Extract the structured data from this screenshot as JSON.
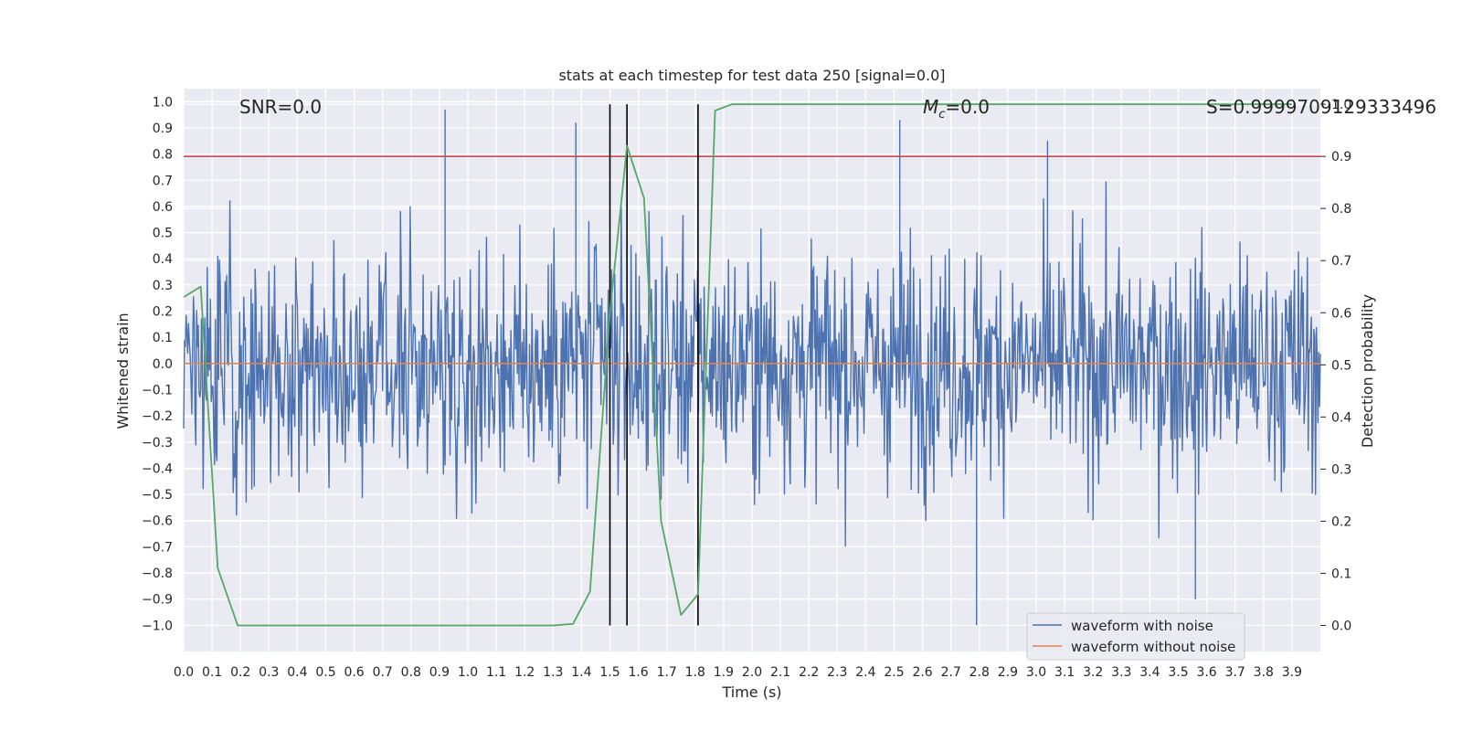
{
  "chart_data": {
    "type": "line",
    "title": "stats at each timestep for test data 250 [signal=0.0]",
    "xlabel": "Time (s)",
    "ylabel": "Whitened strain",
    "y2label": "Detection probability",
    "xlim": [
      0.0,
      4.0
    ],
    "ylim": [
      -1.1,
      1.05
    ],
    "y2lim": [
      -0.05,
      1.03
    ],
    "x_ticks": [
      "0.0",
      "0.1",
      "0.2",
      "0.3",
      "0.4",
      "0.5",
      "0.6",
      "0.7",
      "0.8",
      "0.9",
      "1.0",
      "1.1",
      "1.2",
      "1.3",
      "1.4",
      "1.5",
      "1.6",
      "1.7",
      "1.8",
      "1.9",
      "2.0",
      "2.1",
      "2.2",
      "2.3",
      "2.4",
      "2.5",
      "2.6",
      "2.7",
      "2.8",
      "2.9",
      "3.0",
      "3.1",
      "3.2",
      "3.3",
      "3.4",
      "3.5",
      "3.6",
      "3.7",
      "3.8",
      "3.9"
    ],
    "y_ticks": [
      "1.0",
      "0.9",
      "0.8",
      "0.7",
      "0.6",
      "0.5",
      "0.4",
      "0.3",
      "0.2",
      "0.1",
      "0.0",
      "−0.1",
      "−0.2",
      "−0.3",
      "−0.4",
      "−0.5",
      "−0.6",
      "−0.7",
      "−0.8",
      "−0.9",
      "−1.0"
    ],
    "y2_ticks": [
      "1.0",
      "0.9",
      "0.8",
      "0.7",
      "0.6",
      "0.5",
      "0.4",
      "0.3",
      "0.2",
      "0.1",
      "0.0"
    ],
    "annotations": {
      "snr": "SNR=0.0",
      "mc_symbol": "M",
      "mc_sub": "c",
      "mc_value": "=0.0",
      "s": "S=0.9999709129333496"
    },
    "legend": {
      "placement": "lower-right",
      "entries": [
        "waveform with noise",
        "waveform without noise"
      ]
    },
    "series": [
      {
        "name": "waveform with noise",
        "color": "#4c72b0",
        "style": "noisy signal, amplitude roughly within [-1.0, 0.97]",
        "peaks": [
          [
            0.92,
            0.97
          ],
          [
            1.38,
            0.92
          ],
          [
            2.52,
            0.93
          ],
          [
            3.04,
            0.85
          ],
          [
            2.79,
            -1.0
          ],
          [
            3.56,
            -0.9
          ]
        ]
      },
      {
        "name": "waveform without noise",
        "color": "#dd8452",
        "value": 0.0
      },
      {
        "name": "Detection probability",
        "axis": "right",
        "color": "#55a868",
        "x": [
          0.0,
          0.06,
          0.12,
          0.19,
          0.25,
          1.3,
          1.37,
          1.43,
          1.5,
          1.56,
          1.62,
          1.68,
          1.75,
          1.81,
          1.87,
          1.93,
          2.0,
          3.9
        ],
        "values": [
          0.63,
          0.65,
          0.11,
          0.0,
          0.0,
          0.0,
          0.003,
          0.065,
          0.6,
          0.92,
          0.82,
          0.2,
          0.02,
          0.06,
          0.988,
          1.0,
          1.0,
          1.0
        ]
      }
    ],
    "threshold": {
      "axis": "right",
      "value": 0.9,
      "color": "#c44e52"
    },
    "vlines": [
      1.5,
      1.56,
      1.81
    ]
  }
}
